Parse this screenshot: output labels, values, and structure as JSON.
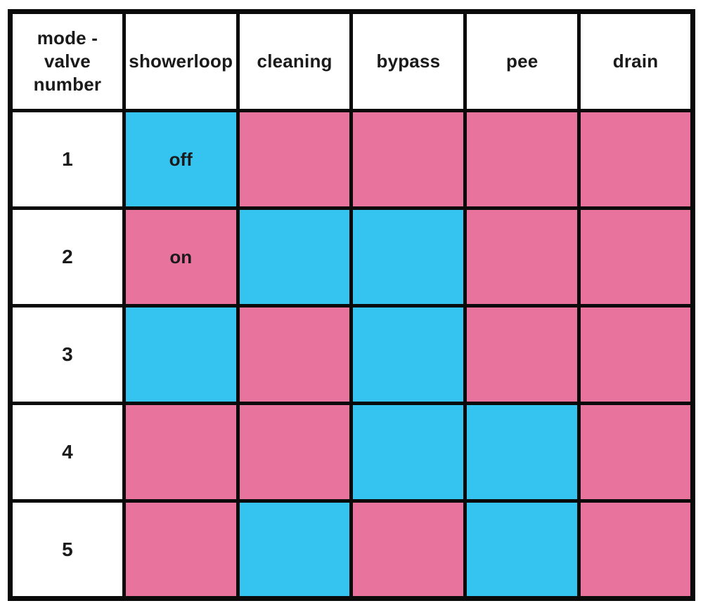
{
  "chart_data": {
    "type": "table",
    "corner_header_lines": [
      "mode -",
      "valve",
      "number"
    ],
    "columns": [
      "showerloop",
      "cleaning",
      "bypass",
      "pee",
      "drain"
    ],
    "rows": [
      {
        "valve": "1",
        "cells": [
          {
            "state": "off",
            "label": "off"
          },
          {
            "state": "on",
            "label": ""
          },
          {
            "state": "on",
            "label": ""
          },
          {
            "state": "on",
            "label": ""
          },
          {
            "state": "on",
            "label": ""
          }
        ]
      },
      {
        "valve": "2",
        "cells": [
          {
            "state": "on",
            "label": "on"
          },
          {
            "state": "off",
            "label": ""
          },
          {
            "state": "off",
            "label": ""
          },
          {
            "state": "on",
            "label": ""
          },
          {
            "state": "on",
            "label": ""
          }
        ]
      },
      {
        "valve": "3",
        "cells": [
          {
            "state": "off",
            "label": ""
          },
          {
            "state": "on",
            "label": ""
          },
          {
            "state": "off",
            "label": ""
          },
          {
            "state": "on",
            "label": ""
          },
          {
            "state": "on",
            "label": ""
          }
        ]
      },
      {
        "valve": "4",
        "cells": [
          {
            "state": "on",
            "label": ""
          },
          {
            "state": "on",
            "label": ""
          },
          {
            "state": "off",
            "label": ""
          },
          {
            "state": "off",
            "label": ""
          },
          {
            "state": "on",
            "label": ""
          }
        ]
      },
      {
        "valve": "5",
        "cells": [
          {
            "state": "on",
            "label": ""
          },
          {
            "state": "off",
            "label": ""
          },
          {
            "state": "on",
            "label": ""
          },
          {
            "state": "off",
            "label": ""
          },
          {
            "state": "on",
            "label": ""
          }
        ]
      }
    ],
    "state_colors": {
      "off": "#35C4F0",
      "on": "#E8749D"
    },
    "layout": {
      "grid": "on",
      "legend": "inline-cell-labels"
    }
  }
}
